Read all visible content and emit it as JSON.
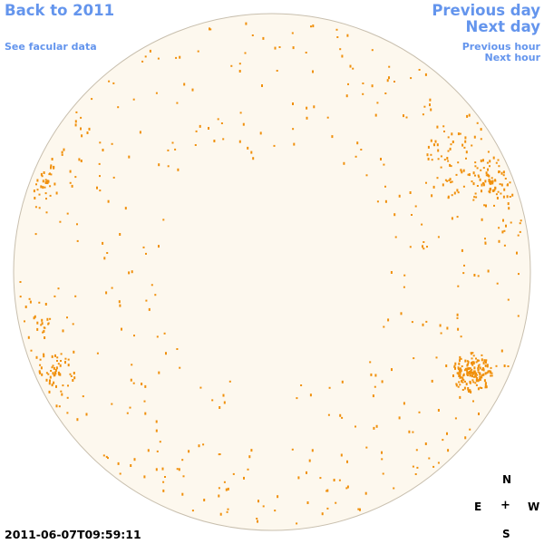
{
  "nav": {
    "back_label": "Back to 2011",
    "facular_label": "See facular data",
    "prev_day_label": "Previous day",
    "next_day_label": "Next day",
    "prev_hour_label": "Previous hour",
    "next_hour_label": "Next hour"
  },
  "compass": {
    "north": "N",
    "east": "E",
    "center": "+",
    "west": "W",
    "south": "S"
  },
  "timestamp": "2011-06-07T09:59:11",
  "colors": {
    "link": "#6495ed",
    "disk_fill": "#fdf8ee",
    "disk_border": "#c8bfae",
    "facula_dot": "#f0900c"
  }
}
